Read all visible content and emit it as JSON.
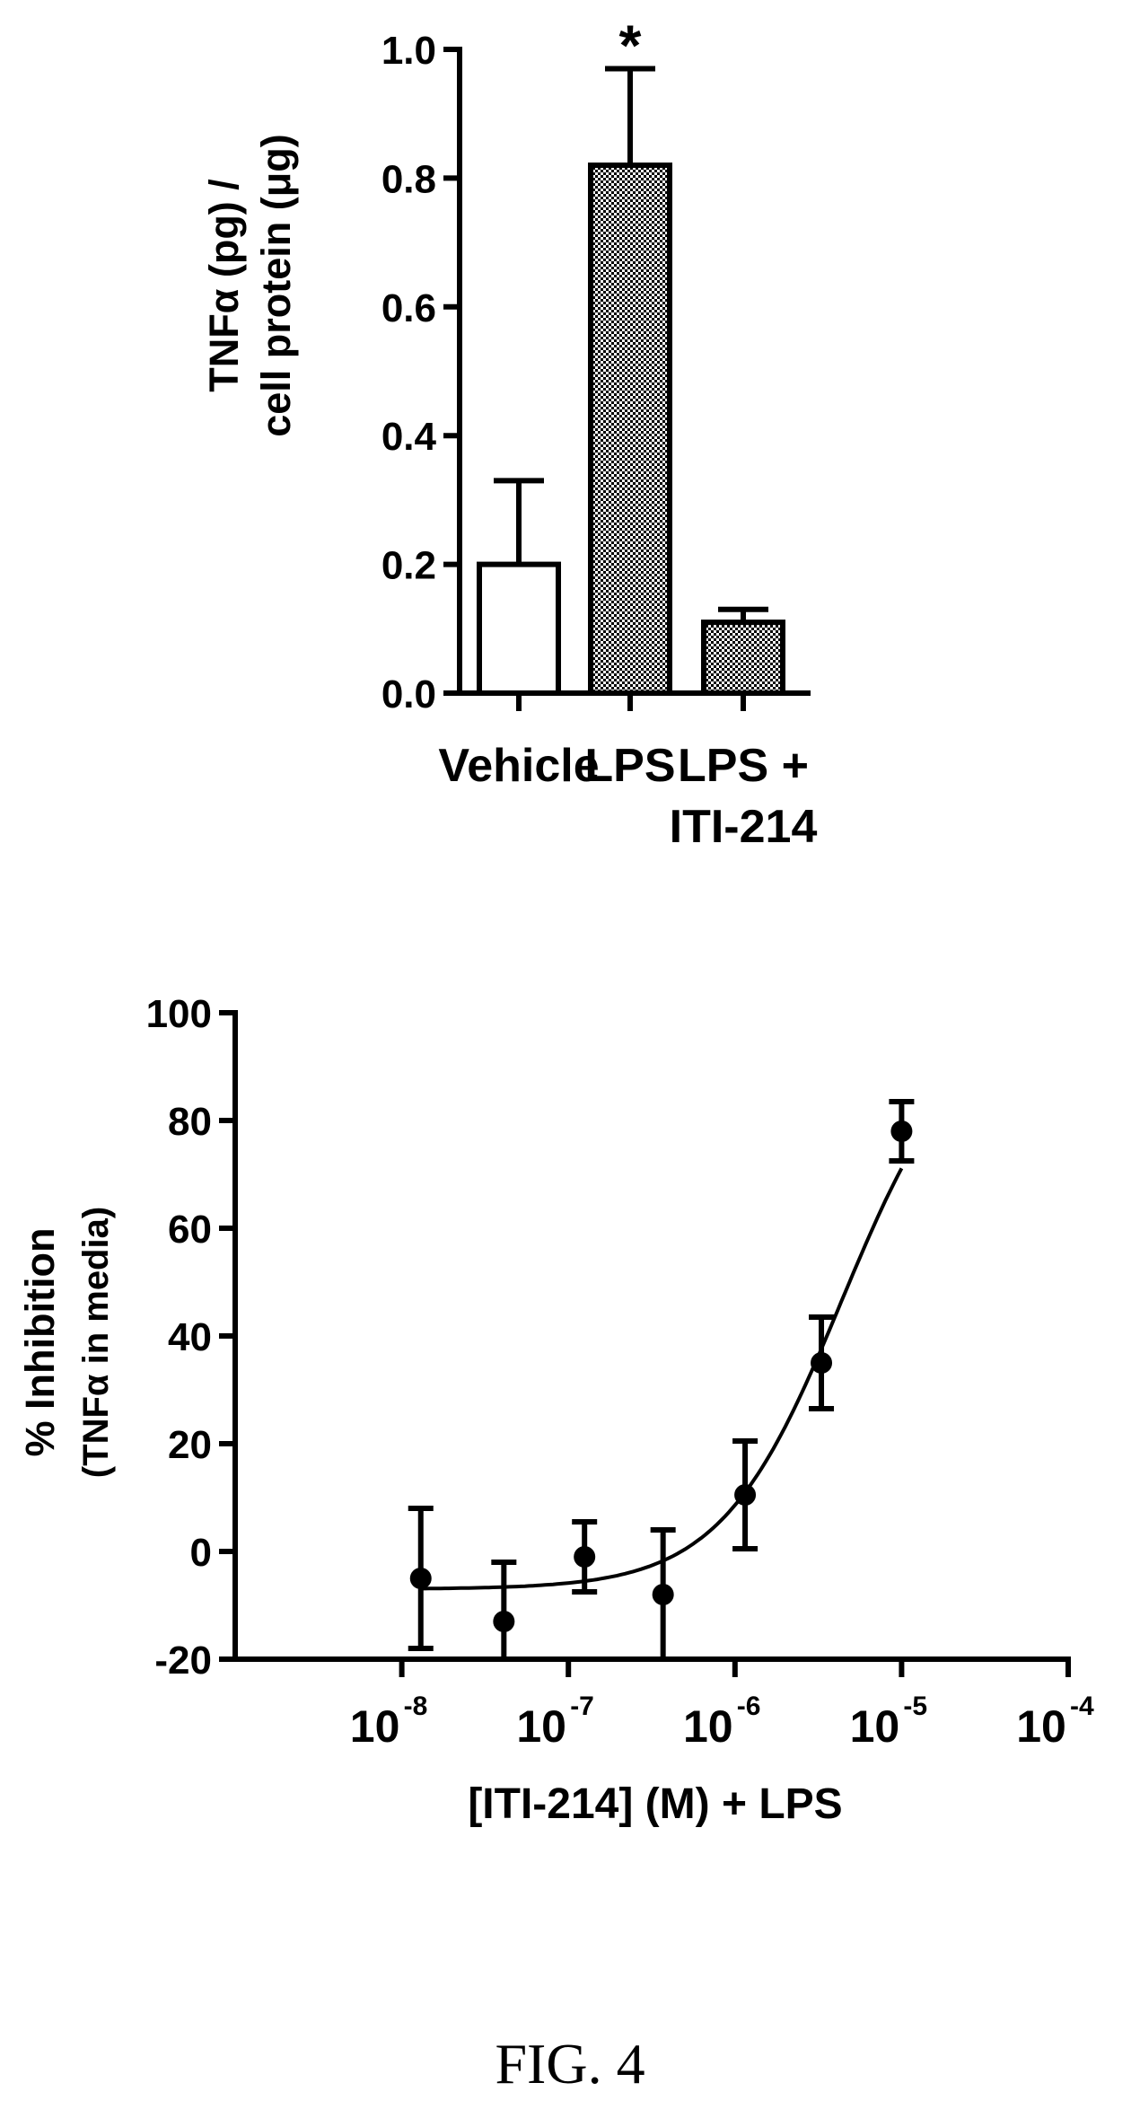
{
  "chart_data": [
    {
      "type": "bar",
      "ylabel_lines": [
        "TNFα (pg) /",
        "cell protein (μg)"
      ],
      "xlabel": "",
      "categories": [
        {
          "lines": [
            "Vehicle"
          ]
        },
        {
          "lines": [
            "LPS"
          ]
        },
        {
          "lines": [
            "LPS +",
            "ITI-214"
          ]
        }
      ],
      "values": [
        0.2,
        0.82,
        0.11
      ],
      "errors": [
        0.13,
        0.15,
        0.02
      ],
      "fills": [
        "empty",
        "hatched",
        "hatched"
      ],
      "annotations": [
        "",
        "*",
        ""
      ],
      "ylim": [
        0,
        1.0
      ],
      "yticks": [
        "0.0",
        "0.2",
        "0.4",
        "0.6",
        "0.8",
        "1.0"
      ],
      "ytick_values": [
        0,
        0.2,
        0.4,
        0.6,
        0.8,
        1.0
      ],
      "grid": false
    },
    {
      "type": "scatter",
      "ylabel_lines": [
        "% Inhibition",
        "(TNFα in media)"
      ],
      "xlabel": "[ITI-214] (M) + LPS",
      "x_scale": "log",
      "xlim": [
        1e-09,
        0.0001
      ],
      "ylim": [
        -20,
        100
      ],
      "xticks": [
        {
          "base": "10",
          "exp": "-8",
          "value": 1e-08
        },
        {
          "base": "10",
          "exp": "-7",
          "value": 1e-07
        },
        {
          "base": "10",
          "exp": "-6",
          "value": 1e-06
        },
        {
          "base": "10",
          "exp": "-5",
          "value": 1e-05
        },
        {
          "base": "10",
          "exp": "-4",
          "value": 0.0001
        }
      ],
      "yticks": [
        "-20",
        "0",
        "20",
        "40",
        "60",
        "80",
        "100"
      ],
      "ytick_values": [
        -20,
        0,
        20,
        40,
        60,
        80,
        100
      ],
      "points": [
        {
          "x": 1.3e-08,
          "y": -5,
          "err": 13
        },
        {
          "x": 4.1e-08,
          "y": -13,
          "err": 11
        },
        {
          "x": 1.25e-07,
          "y": -1,
          "err": 6.5
        },
        {
          "x": 3.7e-07,
          "y": -8,
          "err": 12
        },
        {
          "x": 1.15e-06,
          "y": 10.5,
          "err": 10
        },
        {
          "x": 3.3e-06,
          "y": 35,
          "err": 8.5
        },
        {
          "x": 1e-05,
          "y": 78,
          "err": 5.5
        }
      ],
      "fit": {
        "bottom": -7,
        "top": 100,
        "log_ec50": -5.36,
        "hill": 1.2
      },
      "grid": false
    }
  ],
  "caption": "FIG. 4"
}
